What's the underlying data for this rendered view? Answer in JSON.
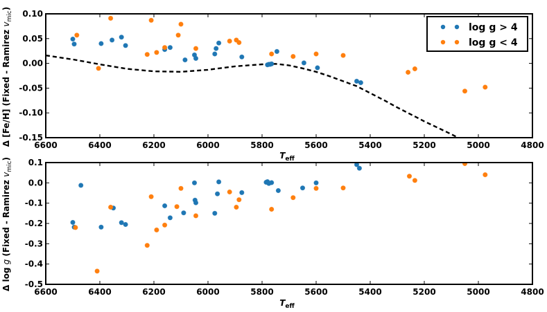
{
  "colors": {
    "high_logg": "#1f77b4",
    "low_logg": "#ff7f0e",
    "model_curve": "#000000",
    "axes": "#000000"
  },
  "legend": {
    "entries": [
      {
        "label": "log g > 4",
        "color_key": "high_logg"
      },
      {
        "label": "log g < 4",
        "color_key": "low_logg"
      }
    ],
    "placement": "top-right of upper panel"
  },
  "chart_data": [
    {
      "type": "scatter",
      "panel": "upper",
      "xlabel_main": "T",
      "xlabel_sub": "eff",
      "ylabel_main": "Δ [Fe/H] (Fixed - Ramirez ",
      "ylabel_var": "v",
      "ylabel_sub": "mic",
      "ylabel_close": ")",
      "xlim": [
        6600,
        4800
      ],
      "ylim": [
        -0.15,
        0.1
      ],
      "xticks": [
        "6600",
        "6400",
        "6200",
        "6000",
        "5800",
        "5600",
        "5400",
        "5200",
        "5000",
        "4800"
      ],
      "yticks": [
        "-0.15",
        "-0.10",
        "-0.05",
        "0.00",
        "0.05",
        "0.10"
      ],
      "series": [
        {
          "name": "log g > 4",
          "color_key": "high_logg",
          "points": [
            [
              6500,
              0.049
            ],
            [
              6495,
              0.039
            ],
            [
              6395,
              0.04
            ],
            [
              6355,
              0.047
            ],
            [
              6320,
              0.053
            ],
            [
              6305,
              0.036
            ],
            [
              6160,
              0.028
            ],
            [
              6140,
              0.032
            ],
            [
              6085,
              0.007
            ],
            [
              6050,
              0.017
            ],
            [
              6045,
              0.01
            ],
            [
              5975,
              0.019
            ],
            [
              5970,
              0.03
            ],
            [
              5960,
              0.041
            ],
            [
              5875,
              0.013
            ],
            [
              5780,
              -0.003
            ],
            [
              5775,
              -0.002
            ],
            [
              5770,
              -0.002
            ],
            [
              5765,
              -0.001
            ],
            [
              5745,
              0.024
            ],
            [
              5645,
              0.001
            ],
            [
              5595,
              -0.009
            ],
            [
              5450,
              -0.036
            ],
            [
              5435,
              -0.039
            ]
          ]
        },
        {
          "name": "log g < 4",
          "color_key": "low_logg",
          "points": [
            [
              6485,
              0.057
            ],
            [
              6405,
              -0.01
            ],
            [
              6360,
              0.091
            ],
            [
              6210,
              0.087
            ],
            [
              6225,
              0.018
            ],
            [
              6190,
              0.022
            ],
            [
              6160,
              0.032
            ],
            [
              6110,
              0.057
            ],
            [
              6100,
              0.079
            ],
            [
              6045,
              0.03
            ],
            [
              5920,
              0.045
            ],
            [
              5895,
              0.047
            ],
            [
              5885,
              0.042
            ],
            [
              5765,
              0.019
            ],
            [
              5685,
              0.014
            ],
            [
              5600,
              0.019
            ],
            [
              5500,
              0.016
            ],
            [
              5260,
              -0.018
            ],
            [
              5235,
              -0.011
            ],
            [
              5050,
              -0.056
            ],
            [
              4975,
              -0.048
            ]
          ]
        }
      ],
      "model_curve": {
        "style": "dashed",
        "points": [
          [
            6600,
            0.016
          ],
          [
            6500,
            0.008
          ],
          [
            6400,
            -0.002
          ],
          [
            6300,
            -0.011
          ],
          [
            6200,
            -0.016
          ],
          [
            6100,
            -0.017
          ],
          [
            6000,
            -0.013
          ],
          [
            5900,
            -0.006
          ],
          [
            5800,
            -0.002
          ],
          [
            5750,
            -0.001
          ],
          [
            5700,
            -0.004
          ],
          [
            5650,
            -0.01
          ],
          [
            5600,
            -0.017
          ],
          [
            5550,
            -0.026
          ],
          [
            5500,
            -0.036
          ],
          [
            5450,
            -0.046
          ],
          [
            5400,
            -0.06
          ],
          [
            5350,
            -0.074
          ],
          [
            5300,
            -0.089
          ],
          [
            5250,
            -0.103
          ],
          [
            5200,
            -0.117
          ],
          [
            5150,
            -0.13
          ],
          [
            5100,
            -0.143
          ],
          [
            5075,
            -0.15
          ]
        ]
      }
    },
    {
      "type": "scatter",
      "panel": "lower",
      "xlabel_main": "T",
      "xlabel_sub": "eff",
      "ylabel_main": "Δ log ",
      "ylabel_var": "g",
      "ylabel_rest": " (Fixed - Ramirez ",
      "ylabel_var2": "v",
      "ylabel_sub": "mic",
      "ylabel_close": ")",
      "xlim": [
        6600,
        4800
      ],
      "ylim": [
        -0.5,
        0.1
      ],
      "xticks": [
        "6600",
        "6400",
        "6200",
        "6000",
        "5800",
        "5600",
        "5400",
        "5200",
        "5000",
        "4800"
      ],
      "yticks": [
        "-0.5",
        "-0.4",
        "-0.3",
        "-0.2",
        "-0.1",
        "0.0",
        "0.1"
      ],
      "series": [
        {
          "name": "log g > 4",
          "color_key": "high_logg",
          "points": [
            [
              6500,
              -0.195
            ],
            [
              6495,
              -0.218
            ],
            [
              6470,
              -0.012
            ],
            [
              6395,
              -0.218
            ],
            [
              6350,
              -0.124
            ],
            [
              6320,
              -0.196
            ],
            [
              6305,
              -0.205
            ],
            [
              6160,
              -0.113
            ],
            [
              6140,
              -0.172
            ],
            [
              6090,
              -0.148
            ],
            [
              6050,
              0.0
            ],
            [
              6048,
              -0.085
            ],
            [
              6045,
              -0.098
            ],
            [
              5975,
              -0.15
            ],
            [
              5965,
              -0.054
            ],
            [
              5960,
              0.005
            ],
            [
              5875,
              -0.048
            ],
            [
              5785,
              0.003
            ],
            [
              5780,
              0.006
            ],
            [
              5775,
              -0.003
            ],
            [
              5765,
              0.001
            ],
            [
              5740,
              -0.038
            ],
            [
              5650,
              -0.025
            ],
            [
              5600,
              0.0
            ],
            [
              5450,
              0.09
            ],
            [
              5440,
              0.072
            ]
          ]
        },
        {
          "name": "log g < 4",
          "color_key": "low_logg",
          "points": [
            [
              6490,
              -0.22
            ],
            [
              6410,
              -0.435
            ],
            [
              6360,
              -0.12
            ],
            [
              6225,
              -0.308
            ],
            [
              6210,
              -0.068
            ],
            [
              6190,
              -0.232
            ],
            [
              6160,
              -0.208
            ],
            [
              6115,
              -0.117
            ],
            [
              6100,
              -0.027
            ],
            [
              6045,
              -0.162
            ],
            [
              5920,
              -0.045
            ],
            [
              5895,
              -0.12
            ],
            [
              5885,
              -0.083
            ],
            [
              5765,
              -0.13
            ],
            [
              5685,
              -0.073
            ],
            [
              5600,
              -0.027
            ],
            [
              5500,
              -0.025
            ],
            [
              5255,
              0.033
            ],
            [
              5235,
              0.012
            ],
            [
              5050,
              0.095
            ],
            [
              4975,
              0.04
            ]
          ]
        }
      ]
    }
  ]
}
